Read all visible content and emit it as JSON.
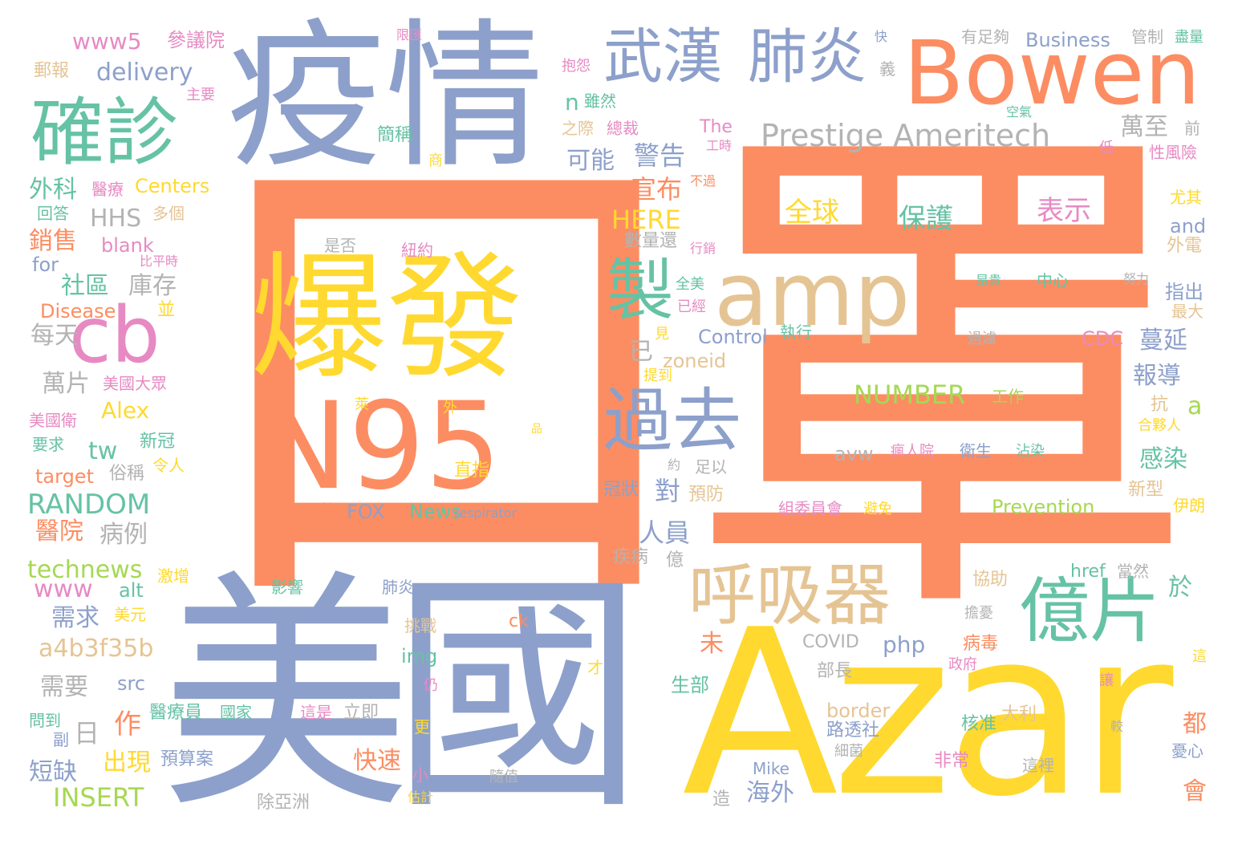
{
  "palette": {
    "salmon": "#fc8d62",
    "periwinkle": "#8da0cb",
    "green": "#66c2a5",
    "yellow": "#ffd92f",
    "tan": "#e5c494",
    "pink": "#e78ac3",
    "lime": "#a6d854",
    "gray": "#b3b3b3"
  },
  "words": [
    {
      "text": "口罩",
      "color": "salmon"
    },
    {
      "text": "疫情",
      "color": "periwinkle"
    },
    {
      "text": "美國",
      "color": "periwinkle"
    },
    {
      "text": "Azar",
      "color": "yellow"
    },
    {
      "text": "爆發",
      "color": "yellow"
    },
    {
      "text": "N95",
      "color": "salmon"
    },
    {
      "text": "Bowen",
      "color": "salmon"
    },
    {
      "text": "amp",
      "color": "tan"
    },
    {
      "text": "cb",
      "color": "pink"
    },
    {
      "text": "確診",
      "color": "green"
    },
    {
      "text": "武漢",
      "color": "periwinkle"
    },
    {
      "text": "肺炎",
      "color": "periwinkle"
    },
    {
      "text": "過去",
      "color": "periwinkle"
    },
    {
      "text": "億片",
      "color": "green"
    },
    {
      "text": "呼吸器",
      "color": "tan"
    },
    {
      "text": "製",
      "color": "green"
    },
    {
      "text": "Prestige Ameritech",
      "color": "gray"
    },
    {
      "text": "全球",
      "color": "yellow"
    },
    {
      "text": "保護",
      "color": "green"
    },
    {
      "text": "表示",
      "color": "pink"
    },
    {
      "text": "NUMBER",
      "color": "lime"
    },
    {
      "text": "工作",
      "color": "lime"
    },
    {
      "text": "www5",
      "color": "pink"
    },
    {
      "text": "參議院",
      "color": "pink"
    },
    {
      "text": "delivery",
      "color": "periwinkle"
    },
    {
      "text": "郵報",
      "color": "tan"
    },
    {
      "text": "主要",
      "color": "pink"
    },
    {
      "text": "外科",
      "color": "green"
    },
    {
      "text": "醫療",
      "color": "pink"
    },
    {
      "text": "Centers",
      "color": "yellow"
    },
    {
      "text": "HHS",
      "color": "gray"
    },
    {
      "text": "多個",
      "color": "tan"
    },
    {
      "text": "回答",
      "color": "green"
    },
    {
      "text": "銷售",
      "color": "salmon"
    },
    {
      "text": "blank",
      "color": "pink"
    },
    {
      "text": "for",
      "color": "periwinkle"
    },
    {
      "text": "比平時",
      "color": "pink"
    },
    {
      "text": "社區",
      "color": "green"
    },
    {
      "text": "庫存",
      "color": "gray"
    },
    {
      "text": "Disease",
      "color": "salmon"
    },
    {
      "text": "並",
      "color": "yellow"
    },
    {
      "text": "每天",
      "color": "gray"
    },
    {
      "text": "萬片",
      "color": "gray"
    },
    {
      "text": "美國大眾",
      "color": "pink"
    },
    {
      "text": "Alex",
      "color": "yellow"
    },
    {
      "text": "美國衛",
      "color": "pink"
    },
    {
      "text": "新冠",
      "color": "green"
    },
    {
      "text": "要求",
      "color": "green"
    },
    {
      "text": "tw",
      "color": "green"
    },
    {
      "text": "令人",
      "color": "yellow"
    },
    {
      "text": "俗稱",
      "color": "gray"
    },
    {
      "text": "target",
      "color": "salmon"
    },
    {
      "text": "RANDOM",
      "color": "green"
    },
    {
      "text": "醫院",
      "color": "salmon"
    },
    {
      "text": "病例",
      "color": "gray"
    },
    {
      "text": "technews",
      "color": "lime"
    },
    {
      "text": "激增",
      "color": "yellow"
    },
    {
      "text": "www",
      "color": "pink"
    },
    {
      "text": "alt",
      "color": "green"
    },
    {
      "text": "需求",
      "color": "periwinkle"
    },
    {
      "text": "美元",
      "color": "yellow"
    },
    {
      "text": "a4b3f35b",
      "color": "tan"
    },
    {
      "text": "需要",
      "color": "gray"
    },
    {
      "text": "src",
      "color": "periwinkle"
    },
    {
      "text": "日",
      "color": "gray"
    },
    {
      "text": "作",
      "color": "salmon"
    },
    {
      "text": "問到",
      "color": "green"
    },
    {
      "text": "副",
      "color": "periwinkle"
    },
    {
      "text": "短缺",
      "color": "periwinkle"
    },
    {
      "text": "出現",
      "color": "yellow"
    },
    {
      "text": "預算案",
      "color": "periwinkle"
    },
    {
      "text": "INSERT",
      "color": "lime"
    },
    {
      "text": "醫療員",
      "color": "green"
    },
    {
      "text": "國家",
      "color": "green"
    },
    {
      "text": "這是",
      "color": "pink"
    },
    {
      "text": "立即",
      "color": "gray"
    },
    {
      "text": "除亞洲",
      "color": "gray"
    },
    {
      "text": "是否",
      "color": "gray"
    },
    {
      "text": "紐約",
      "color": "pink"
    },
    {
      "text": "直指",
      "color": "yellow"
    },
    {
      "text": "萊",
      "color": "yellow"
    },
    {
      "text": "外",
      "color": "yellow"
    },
    {
      "text": "品",
      "color": "yellow"
    },
    {
      "text": "不夠",
      "color": "salmon"
    },
    {
      "text": "FOX",
      "color": "periwinkle"
    },
    {
      "text": "News",
      "color": "green"
    },
    {
      "text": "respirator",
      "color": "periwinkle"
    },
    {
      "text": "限匯",
      "color": "pink"
    },
    {
      "text": "抱怨",
      "color": "pink"
    },
    {
      "text": "n",
      "color": "green"
    },
    {
      "text": "雖然",
      "color": "green"
    },
    {
      "text": "簡稱",
      "color": "green"
    },
    {
      "text": "商",
      "color": "yellow"
    },
    {
      "text": "之際",
      "color": "tan"
    },
    {
      "text": "總裁",
      "color": "pink"
    },
    {
      "text": "可能",
      "color": "periwinkle"
    },
    {
      "text": "警告",
      "color": "periwinkle"
    },
    {
      "text": "宣布",
      "color": "salmon"
    },
    {
      "text": "不過",
      "color": "salmon"
    },
    {
      "text": "HERE",
      "color": "yellow"
    },
    {
      "text": "數量還",
      "color": "gray"
    },
    {
      "text": "行銷",
      "color": "pink"
    },
    {
      "text": "全美",
      "color": "green"
    },
    {
      "text": "已經",
      "color": "pink"
    },
    {
      "text": "已",
      "color": "gray"
    },
    {
      "text": "見",
      "color": "yellow"
    },
    {
      "text": "Control",
      "color": "periwinkle"
    },
    {
      "text": "執行",
      "color": "green"
    },
    {
      "text": "zoneid",
      "color": "tan"
    },
    {
      "text": "提到",
      "color": "yellow"
    },
    {
      "text": "約",
      "color": "gray"
    },
    {
      "text": "足以",
      "color": "gray"
    },
    {
      "text": "冠狀",
      "color": "periwinkle"
    },
    {
      "text": "對",
      "color": "periwinkle"
    },
    {
      "text": "預防",
      "color": "tan"
    },
    {
      "text": "人員",
      "color": "periwinkle"
    },
    {
      "text": "疾病",
      "color": "gray"
    },
    {
      "text": "億",
      "color": "gray"
    },
    {
      "text": "肺炎",
      "color": "periwinkle"
    },
    {
      "text": "影響",
      "color": "green"
    },
    {
      "text": "挑戰",
      "color": "tan"
    },
    {
      "text": "img",
      "color": "green"
    },
    {
      "text": "仍",
      "color": "pink"
    },
    {
      "text": "更",
      "color": "yellow"
    },
    {
      "text": "小",
      "color": "pink"
    },
    {
      "text": "估計",
      "color": "yellow"
    },
    {
      "text": "ck",
      "color": "salmon"
    },
    {
      "text": "才",
      "color": "yellow"
    },
    {
      "text": "隨值",
      "color": "gray"
    },
    {
      "text": "有足夠",
      "color": "gray"
    },
    {
      "text": "Business",
      "color": "periwinkle"
    },
    {
      "text": "管制",
      "color": "gray"
    },
    {
      "text": "盡量",
      "color": "green"
    },
    {
      "text": "快",
      "color": "periwinkle"
    },
    {
      "text": "義",
      "color": "gray"
    },
    {
      "text": "空氣",
      "color": "green"
    },
    {
      "text": "The",
      "color": "pink"
    },
    {
      "text": "工時",
      "color": "pink"
    },
    {
      "text": "萬至",
      "color": "gray"
    },
    {
      "text": "前",
      "color": "gray"
    },
    {
      "text": "低",
      "color": "pink"
    },
    {
      "text": "性風險",
      "color": "pink"
    },
    {
      "text": "尤其",
      "color": "yellow"
    },
    {
      "text": "and",
      "color": "periwinkle"
    },
    {
      "text": "外電",
      "color": "tan"
    },
    {
      "text": "昂貴",
      "color": "green"
    },
    {
      "text": "中心",
      "color": "green"
    },
    {
      "text": "努力",
      "color": "gray"
    },
    {
      "text": "指出",
      "color": "periwinkle"
    },
    {
      "text": "最大",
      "color": "tan"
    },
    {
      "text": "CDC",
      "color": "pink"
    },
    {
      "text": "蔓延",
      "color": "periwinkle"
    },
    {
      "text": "過濾",
      "color": "gray"
    },
    {
      "text": "報導",
      "color": "periwinkle"
    },
    {
      "text": "抗",
      "color": "tan"
    },
    {
      "text": "合夥人",
      "color": "yellow"
    },
    {
      "text": "a",
      "color": "lime"
    },
    {
      "text": "avw",
      "color": "gray"
    },
    {
      "text": "瘋人院",
      "color": "pink"
    },
    {
      "text": "衛生",
      "color": "periwinkle"
    },
    {
      "text": "沾染",
      "color": "green"
    },
    {
      "text": "感染",
      "color": "green"
    },
    {
      "text": "新型",
      "color": "tan"
    },
    {
      "text": "Prevention",
      "color": "lime"
    },
    {
      "text": "伊朗",
      "color": "yellow"
    },
    {
      "text": "組委員會",
      "color": "pink"
    },
    {
      "text": "避免",
      "color": "yellow"
    },
    {
      "text": "協助",
      "color": "tan"
    },
    {
      "text": "href",
      "color": "green"
    },
    {
      "text": "當然",
      "color": "gray"
    },
    {
      "text": "於",
      "color": "green"
    },
    {
      "text": "擔憂",
      "color": "gray"
    },
    {
      "text": "COVID",
      "color": "gray"
    },
    {
      "text": "php",
      "color": "periwinkle"
    },
    {
      "text": "病毒",
      "color": "salmon"
    },
    {
      "text": "政府",
      "color": "pink"
    },
    {
      "text": "這",
      "color": "yellow"
    },
    {
      "text": "未",
      "color": "salmon"
    },
    {
      "text": "部長",
      "color": "gray"
    },
    {
      "text": "讓",
      "color": "pink"
    },
    {
      "text": "生部",
      "color": "green"
    },
    {
      "text": "border",
      "color": "tan"
    },
    {
      "text": "大利",
      "color": "tan"
    },
    {
      "text": "核准",
      "color": "green"
    },
    {
      "text": "都",
      "color": "salmon"
    },
    {
      "text": "較",
      "color": "gray"
    },
    {
      "text": "憂心",
      "color": "periwinkle"
    },
    {
      "text": "路透社",
      "color": "periwinkle"
    },
    {
      "text": "細菌",
      "color": "gray"
    },
    {
      "text": "快速",
      "color": "salmon"
    },
    {
      "text": "非常",
      "color": "pink"
    },
    {
      "text": "Mike",
      "color": "periwinkle"
    },
    {
      "text": "這裡",
      "color": "gray"
    },
    {
      "text": "後",
      "color": "yellow"
    },
    {
      "text": "海外",
      "color": "periwinkle"
    },
    {
      "text": "造",
      "color": "gray"
    },
    {
      "text": "會",
      "color": "salmon"
    }
  ]
}
